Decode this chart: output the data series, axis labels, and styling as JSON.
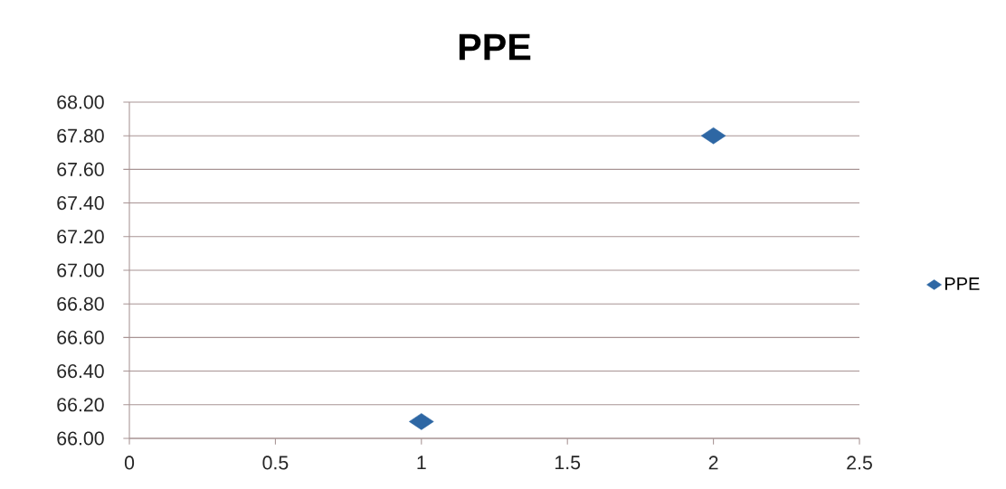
{
  "chart_data": {
    "type": "scatter",
    "title": "PPE",
    "x": [
      1,
      2
    ],
    "series": [
      {
        "name": "PPE",
        "color": "#2e67a4",
        "values": [
          66.1,
          67.8
        ]
      }
    ],
    "xlim": [
      0,
      2.5
    ],
    "xticks": [
      0,
      0.5,
      1,
      1.5,
      2,
      2.5
    ],
    "ylim": [
      66,
      68
    ],
    "yticks": [
      {
        "value": 66,
        "label": "66.00"
      },
      {
        "value": 66.2,
        "label": "66.20"
      },
      {
        "value": 66.4,
        "label": "66.40"
      },
      {
        "value": 66.6,
        "label": "66.60"
      },
      {
        "value": 66.8,
        "label": "66.80"
      },
      {
        "value": 67,
        "label": "67.00"
      },
      {
        "value": 67.2,
        "label": "67.20"
      },
      {
        "value": 67.4,
        "label": "67.40"
      },
      {
        "value": 67.6,
        "label": "67.60"
      },
      {
        "value": 67.8,
        "label": "67.80"
      },
      {
        "value": 68,
        "label": "68.00"
      }
    ],
    "grid": "y",
    "legend": "right",
    "marker": "diamond"
  }
}
